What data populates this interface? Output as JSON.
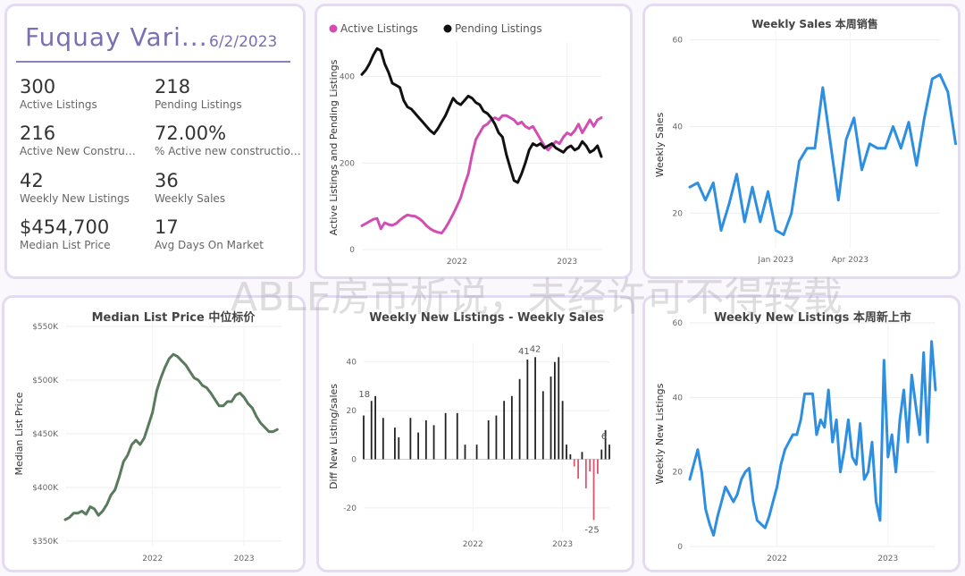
{
  "kpis": {
    "title": "Fuquay Vari...",
    "date": "6/2/2023",
    "items": [
      {
        "value": "300",
        "label": "Active Listings"
      },
      {
        "value": "218",
        "label": "Pending Listings"
      },
      {
        "value": "216",
        "label": "Active New Constructi..."
      },
      {
        "value": "72.00%",
        "label": "% Active new constructions"
      },
      {
        "value": "42",
        "label": "Weekly New Listings"
      },
      {
        "value": "36",
        "label": "Weekly Sales"
      },
      {
        "value": "$454,700",
        "label": "Median List Price"
      },
      {
        "value": "17",
        "label": "Avg Days On Market"
      }
    ]
  },
  "watermark": "ABLE房市析说，未经许可不得转载",
  "colors": {
    "active": "#d14fb2",
    "pending": "#111111",
    "sales": "#2e8fe0",
    "median": "#5a7a5e",
    "neg": "#d9566c"
  },
  "chart_data": [
    {
      "type": "line",
      "legend": [
        "Active Listings",
        "Pending Listings"
      ],
      "legend_position": "top-left",
      "ylabel": "Active Listings and Pending Listings",
      "xticks": [
        "2022",
        "2023"
      ],
      "yticks": [
        0,
        200,
        400
      ],
      "ylim": [
        0,
        480
      ],
      "xlim": [
        0,
        63
      ],
      "x_tick_pos": [
        25,
        54
      ],
      "series": [
        {
          "name": "Active Listings",
          "values": [
            55,
            60,
            65,
            70,
            72,
            48,
            62,
            58,
            56,
            60,
            68,
            75,
            80,
            78,
            77,
            72,
            65,
            55,
            48,
            43,
            40,
            38,
            50,
            65,
            82,
            100,
            120,
            150,
            175,
            220,
            255,
            270,
            285,
            290,
            300,
            305,
            300,
            310,
            310,
            305,
            300,
            290,
            295,
            285,
            280,
            285,
            270,
            255,
            240,
            230,
            240,
            250,
            245,
            260,
            270,
            265,
            275,
            290,
            270,
            285,
            300,
            285,
            300,
            305
          ]
        },
        {
          "name": "Pending Listings",
          "values": [
            405,
            415,
            430,
            450,
            465,
            460,
            430,
            410,
            385,
            380,
            375,
            345,
            330,
            325,
            315,
            305,
            295,
            285,
            275,
            268,
            280,
            295,
            310,
            330,
            350,
            340,
            335,
            345,
            355,
            350,
            340,
            335,
            320,
            315,
            305,
            290,
            270,
            260,
            220,
            190,
            160,
            155,
            175,
            200,
            230,
            245,
            240,
            245,
            235,
            240,
            245,
            235,
            230,
            225,
            235,
            240,
            230,
            235,
            250,
            240,
            225,
            230,
            240,
            215
          ]
        }
      ]
    },
    {
      "type": "line",
      "title": "Weekly Sales 本周销售",
      "ylabel": "Weekly Sales",
      "xticks": [
        "Jan 2023",
        "Apr 2023"
      ],
      "x_tick_pos": [
        11,
        20.5
      ],
      "yticks": [
        20,
        40,
        60
      ],
      "ylim": [
        12,
        62
      ],
      "xlim": [
        0,
        32
      ],
      "series": [
        {
          "name": "Weekly Sales",
          "values": [
            26,
            27,
            23,
            27,
            16,
            22,
            29,
            18,
            26,
            18,
            25,
            16,
            15,
            20,
            32,
            35,
            35,
            49,
            36,
            23,
            37,
            42,
            30,
            36,
            35,
            35,
            40,
            35,
            41,
            31,
            42,
            51,
            52,
            48,
            36
          ]
        }
      ]
    },
    {
      "type": "line",
      "title": "Median List Price  中位标价",
      "ylabel": "Median List Price",
      "xticks": [
        "2022",
        "2023"
      ],
      "x_tick_pos": [
        21,
        43
      ],
      "yticks": [
        "$350K",
        "$400K",
        "$450K",
        "$500K",
        "$550K"
      ],
      "ytick_values": [
        350,
        400,
        450,
        500,
        550
      ],
      "ylim": [
        345,
        555
      ],
      "xlim": [
        0,
        52
      ],
      "series": [
        {
          "name": "Median List Price",
          "values": [
            370,
            372,
            376,
            376,
            378,
            375,
            382,
            380,
            374,
            378,
            384,
            393,
            398,
            410,
            424,
            430,
            440,
            444,
            440,
            446,
            458,
            470,
            490,
            502,
            512,
            520,
            524,
            522,
            518,
            514,
            508,
            502,
            500,
            495,
            493,
            488,
            482,
            476,
            476,
            480,
            480,
            486,
            488,
            484,
            478,
            474,
            466,
            460,
            456,
            452,
            452,
            454
          ]
        }
      ]
    },
    {
      "type": "bar",
      "title": "Weekly New Listings - Weekly Sales",
      "ylabel": "Diff New Listing/sales",
      "xticks": [
        "2022",
        "2023"
      ],
      "x_tick_pos": [
        28,
        51
      ],
      "yticks": [
        -20,
        0,
        20,
        40
      ],
      "ylim": [
        -30,
        48
      ],
      "xlim": [
        0,
        63
      ],
      "annotations": [
        "18",
        "41",
        "42",
        "6",
        "-25"
      ],
      "series": [
        {
          "name": "Diff",
          "values": [
            18,
            0,
            24,
            26,
            0,
            17,
            0,
            0,
            13,
            9,
            0,
            0,
            17,
            0,
            11,
            0,
            16,
            0,
            14,
            0,
            0,
            19,
            0,
            0,
            19,
            0,
            6,
            0,
            0,
            6,
            0,
            0,
            16,
            0,
            18,
            0,
            24,
            0,
            26,
            0,
            33,
            0,
            41,
            0,
            42,
            0,
            28,
            0,
            34,
            40,
            42,
            24,
            6,
            2,
            -3,
            -8,
            3,
            -12,
            -5,
            -25,
            -6,
            4,
            12,
            6
          ]
        }
      ]
    },
    {
      "type": "line",
      "title": "Weekly New Listings  本周新上市",
      "ylabel": "Weekly New Listings",
      "xticks": [
        "2022",
        "2023"
      ],
      "x_tick_pos": [
        22,
        50
      ],
      "yticks": [
        0,
        20,
        40,
        60
      ],
      "ylim": [
        0,
        60
      ],
      "xlim": [
        0,
        62
      ],
      "series": [
        {
          "name": "Weekly New Listings",
          "values": [
            18,
            22,
            26,
            20,
            10,
            6,
            3,
            8,
            12,
            16,
            14,
            12,
            14,
            18,
            20,
            21,
            12,
            7,
            6,
            5,
            8,
            12,
            16,
            22,
            26,
            28,
            30,
            30,
            34,
            41,
            41,
            41,
            30,
            34,
            32,
            42,
            28,
            34,
            20,
            26,
            34,
            24,
            22,
            33,
            18,
            20,
            28,
            12,
            7,
            50,
            24,
            30,
            20,
            34,
            42,
            28,
            46,
            38,
            30,
            52,
            28,
            55,
            42
          ]
        }
      ]
    }
  ]
}
